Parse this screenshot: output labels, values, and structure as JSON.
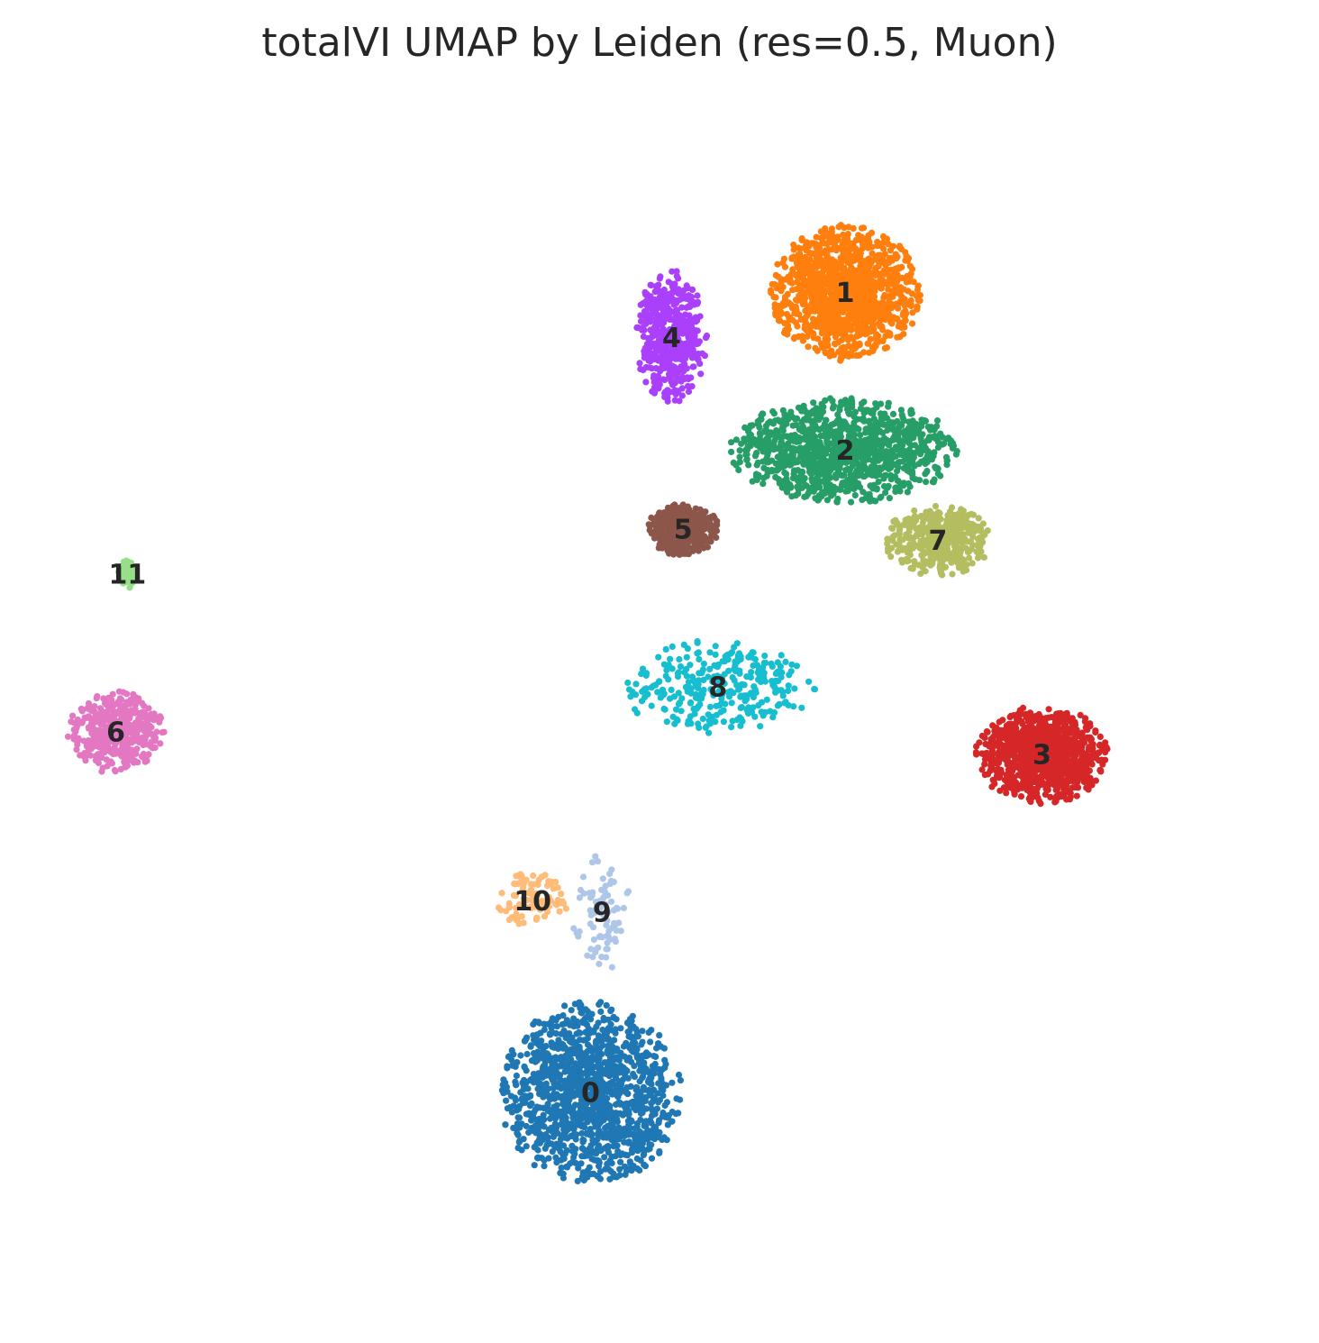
{
  "chart_data": {
    "type": "scatter",
    "title": "totalVI UMAP by Leiden (res=0.5, Muon)",
    "xlabel": "",
    "ylabel": "",
    "axes_visible": false,
    "grid": false,
    "legend": "on data",
    "point_labels_on_data": true,
    "categories": [
      "0",
      "1",
      "2",
      "3",
      "4",
      "5",
      "6",
      "7",
      "8",
      "9",
      "10",
      "11"
    ],
    "palette": {
      "0": "#1f77b4",
      "1": "#ff7f0e",
      "2": "#279e68",
      "3": "#d62728",
      "4": "#aa40fc",
      "5": "#8c564b",
      "6": "#e377c2",
      "7": "#b5bd61",
      "8": "#17becf",
      "9": "#aec7e8",
      "10": "#ffbb78",
      "11": "#98df8a"
    },
    "clusters": [
      {
        "label": "0",
        "centroid": [
          0.44,
          0.15
        ],
        "extent": [
          0.075,
          0.078
        ],
        "relative_size": 0.95
      },
      {
        "label": "1",
        "centroid": [
          0.66,
          0.86
        ],
        "extent": [
          0.062,
          0.058
        ],
        "relative_size": 0.85
      },
      {
        "label": "2",
        "centroid": [
          0.66,
          0.72
        ],
        "extent": [
          0.095,
          0.045
        ],
        "relative_size": 0.8
      },
      {
        "label": "3",
        "centroid": [
          0.83,
          0.45
        ],
        "extent": [
          0.055,
          0.042
        ],
        "relative_size": 0.65
      },
      {
        "label": "4",
        "centroid": [
          0.51,
          0.82
        ],
        "extent": [
          0.03,
          0.058
        ],
        "relative_size": 0.35
      },
      {
        "label": "5",
        "centroid": [
          0.52,
          0.65
        ],
        "extent": [
          0.03,
          0.022
        ],
        "relative_size": 0.3
      },
      {
        "label": "6",
        "centroid": [
          0.03,
          0.47
        ],
        "extent": [
          0.04,
          0.035
        ],
        "relative_size": 0.3
      },
      {
        "label": "7",
        "centroid": [
          0.74,
          0.64
        ],
        "extent": [
          0.045,
          0.03
        ],
        "relative_size": 0.28
      },
      {
        "label": "8",
        "centroid": [
          0.55,
          0.51
        ],
        "extent": [
          0.08,
          0.04
        ],
        "relative_size": 0.22
      },
      {
        "label": "9",
        "centroid": [
          0.45,
          0.31
        ],
        "extent": [
          0.025,
          0.05
        ],
        "relative_size": 0.06
      },
      {
        "label": "10",
        "centroid": [
          0.39,
          0.32
        ],
        "extent": [
          0.03,
          0.025
        ],
        "relative_size": 0.06
      },
      {
        "label": "11",
        "centroid": [
          0.04,
          0.61
        ],
        "extent": [
          0.008,
          0.012
        ],
        "relative_size": 0.03
      }
    ]
  }
}
